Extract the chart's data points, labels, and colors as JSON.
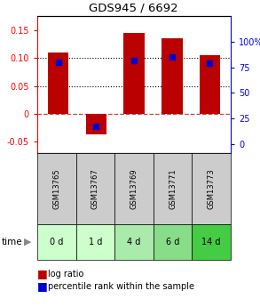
{
  "title": "GDS945 / 6692",
  "samples": [
    "GSM13765",
    "GSM13767",
    "GSM13769",
    "GSM13771",
    "GSM13773"
  ],
  "time_labels": [
    "0 d",
    "1 d",
    "4 d",
    "6 d",
    "14 d"
  ],
  "log_ratios": [
    0.11,
    -0.037,
    0.145,
    0.136,
    0.105
  ],
  "percentile_ranks": [
    80,
    17,
    82,
    85,
    79
  ],
  "bar_color": "#bb0000",
  "dot_color": "#0000cc",
  "ylim_left": [
    -0.07,
    0.175
  ],
  "ylim_right": [
    -8.75,
    125
  ],
  "yticks_left": [
    -0.05,
    0.0,
    0.05,
    0.1,
    0.15
  ],
  "yticks_right": [
    0,
    25,
    50,
    75,
    100
  ],
  "ytick_left_labels": [
    "-0.05",
    "0",
    "0.05",
    "0.10",
    "0.15"
  ],
  "ytick_right_labels": [
    "0",
    "25",
    "50",
    "75",
    "100%"
  ],
  "hline_dotted": [
    0.05,
    0.1
  ],
  "hline_zero_color": "#cc4444",
  "sample_bg_color": "#cccccc",
  "time_bg_colors": [
    "#ccffcc",
    "#ccffcc",
    "#aaeaaa",
    "#88dd88",
    "#44cc44"
  ],
  "bar_width": 0.55,
  "legend_log_ratio": "log ratio",
  "legend_percentile": "percentile rank within the sample",
  "title_fontsize": 9.5,
  "axis_fontsize": 7,
  "legend_fontsize": 7
}
